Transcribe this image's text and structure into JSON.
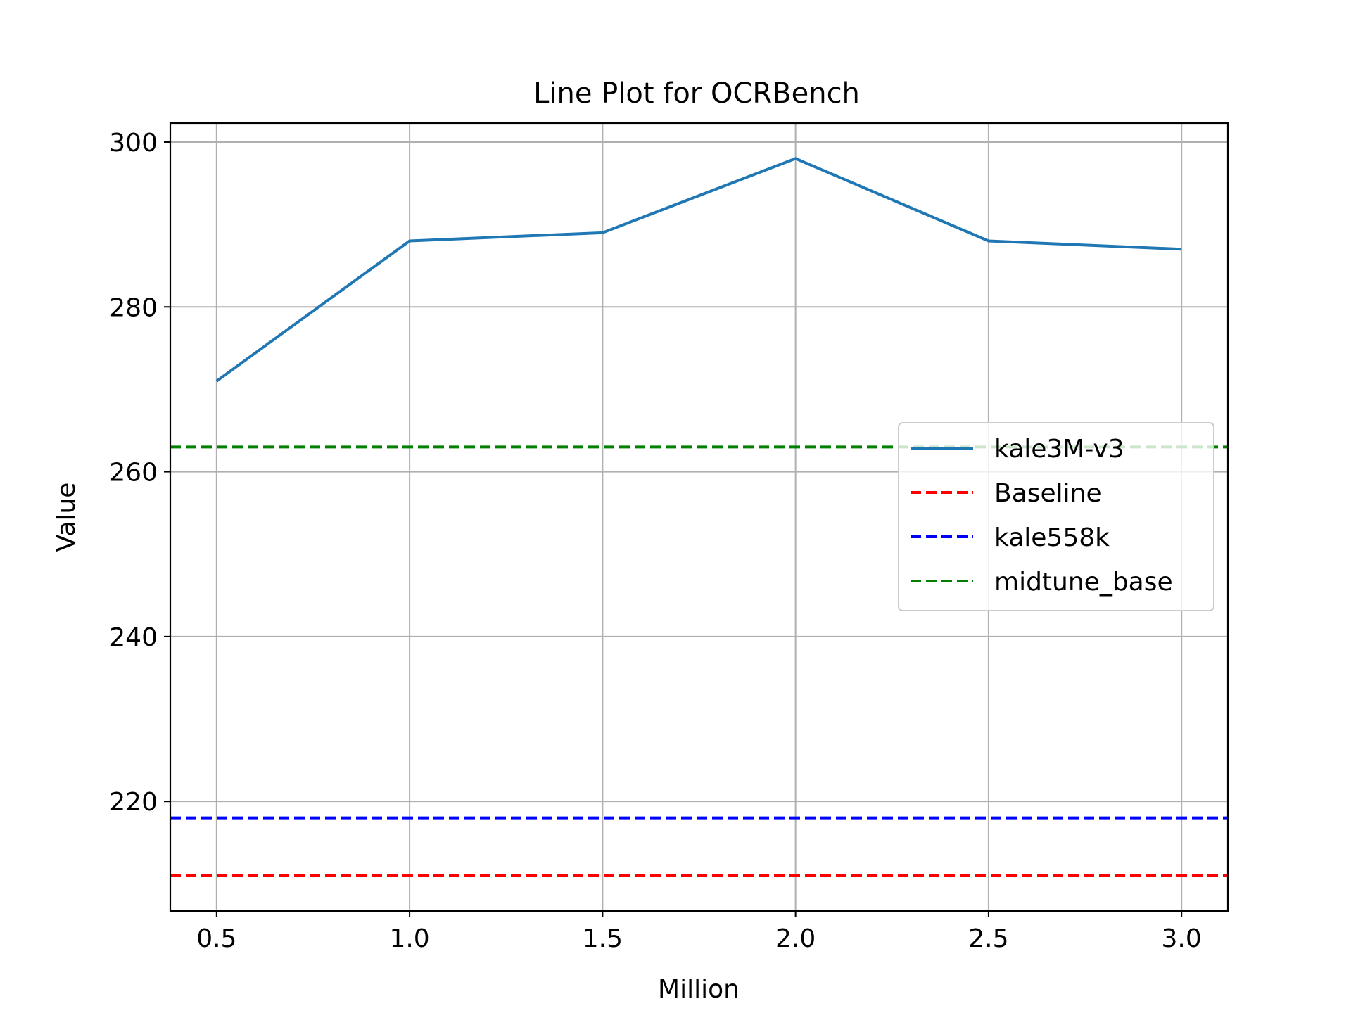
{
  "chart_data": {
    "type": "line",
    "title": "Line Plot for OCRBench",
    "xlabel": "Million",
    "ylabel": "Value",
    "xlim": [
      0.38,
      3.12
    ],
    "ylim": [
      206.7,
      302.3
    ],
    "xticks": [
      0.5,
      1.0,
      1.5,
      2.0,
      2.5,
      3.0
    ],
    "xtick_labels": [
      "0.5",
      "1.0",
      "1.5",
      "2.0",
      "2.5",
      "3.0"
    ],
    "yticks": [
      220,
      240,
      260,
      280,
      300
    ],
    "ytick_labels": [
      "220",
      "240",
      "260",
      "280",
      "300"
    ],
    "grid": true,
    "legend_position": "center-right",
    "series": [
      {
        "name": "kale3M-v3",
        "style": "solid",
        "color": "#1f77b4",
        "x": [
          0.5,
          1.0,
          1.5,
          2.0,
          2.5,
          3.0
        ],
        "y": [
          271,
          288,
          289,
          298,
          288,
          287
        ]
      }
    ],
    "reference_lines": [
      {
        "name": "Baseline",
        "style": "dashed",
        "color": "#ff0000",
        "y": 211
      },
      {
        "name": "kale558k",
        "style": "dashed",
        "color": "#0000ff",
        "y": 218
      },
      {
        "name": "midtune_base",
        "style": "dashed",
        "color": "#008000",
        "y": 263
      }
    ]
  }
}
